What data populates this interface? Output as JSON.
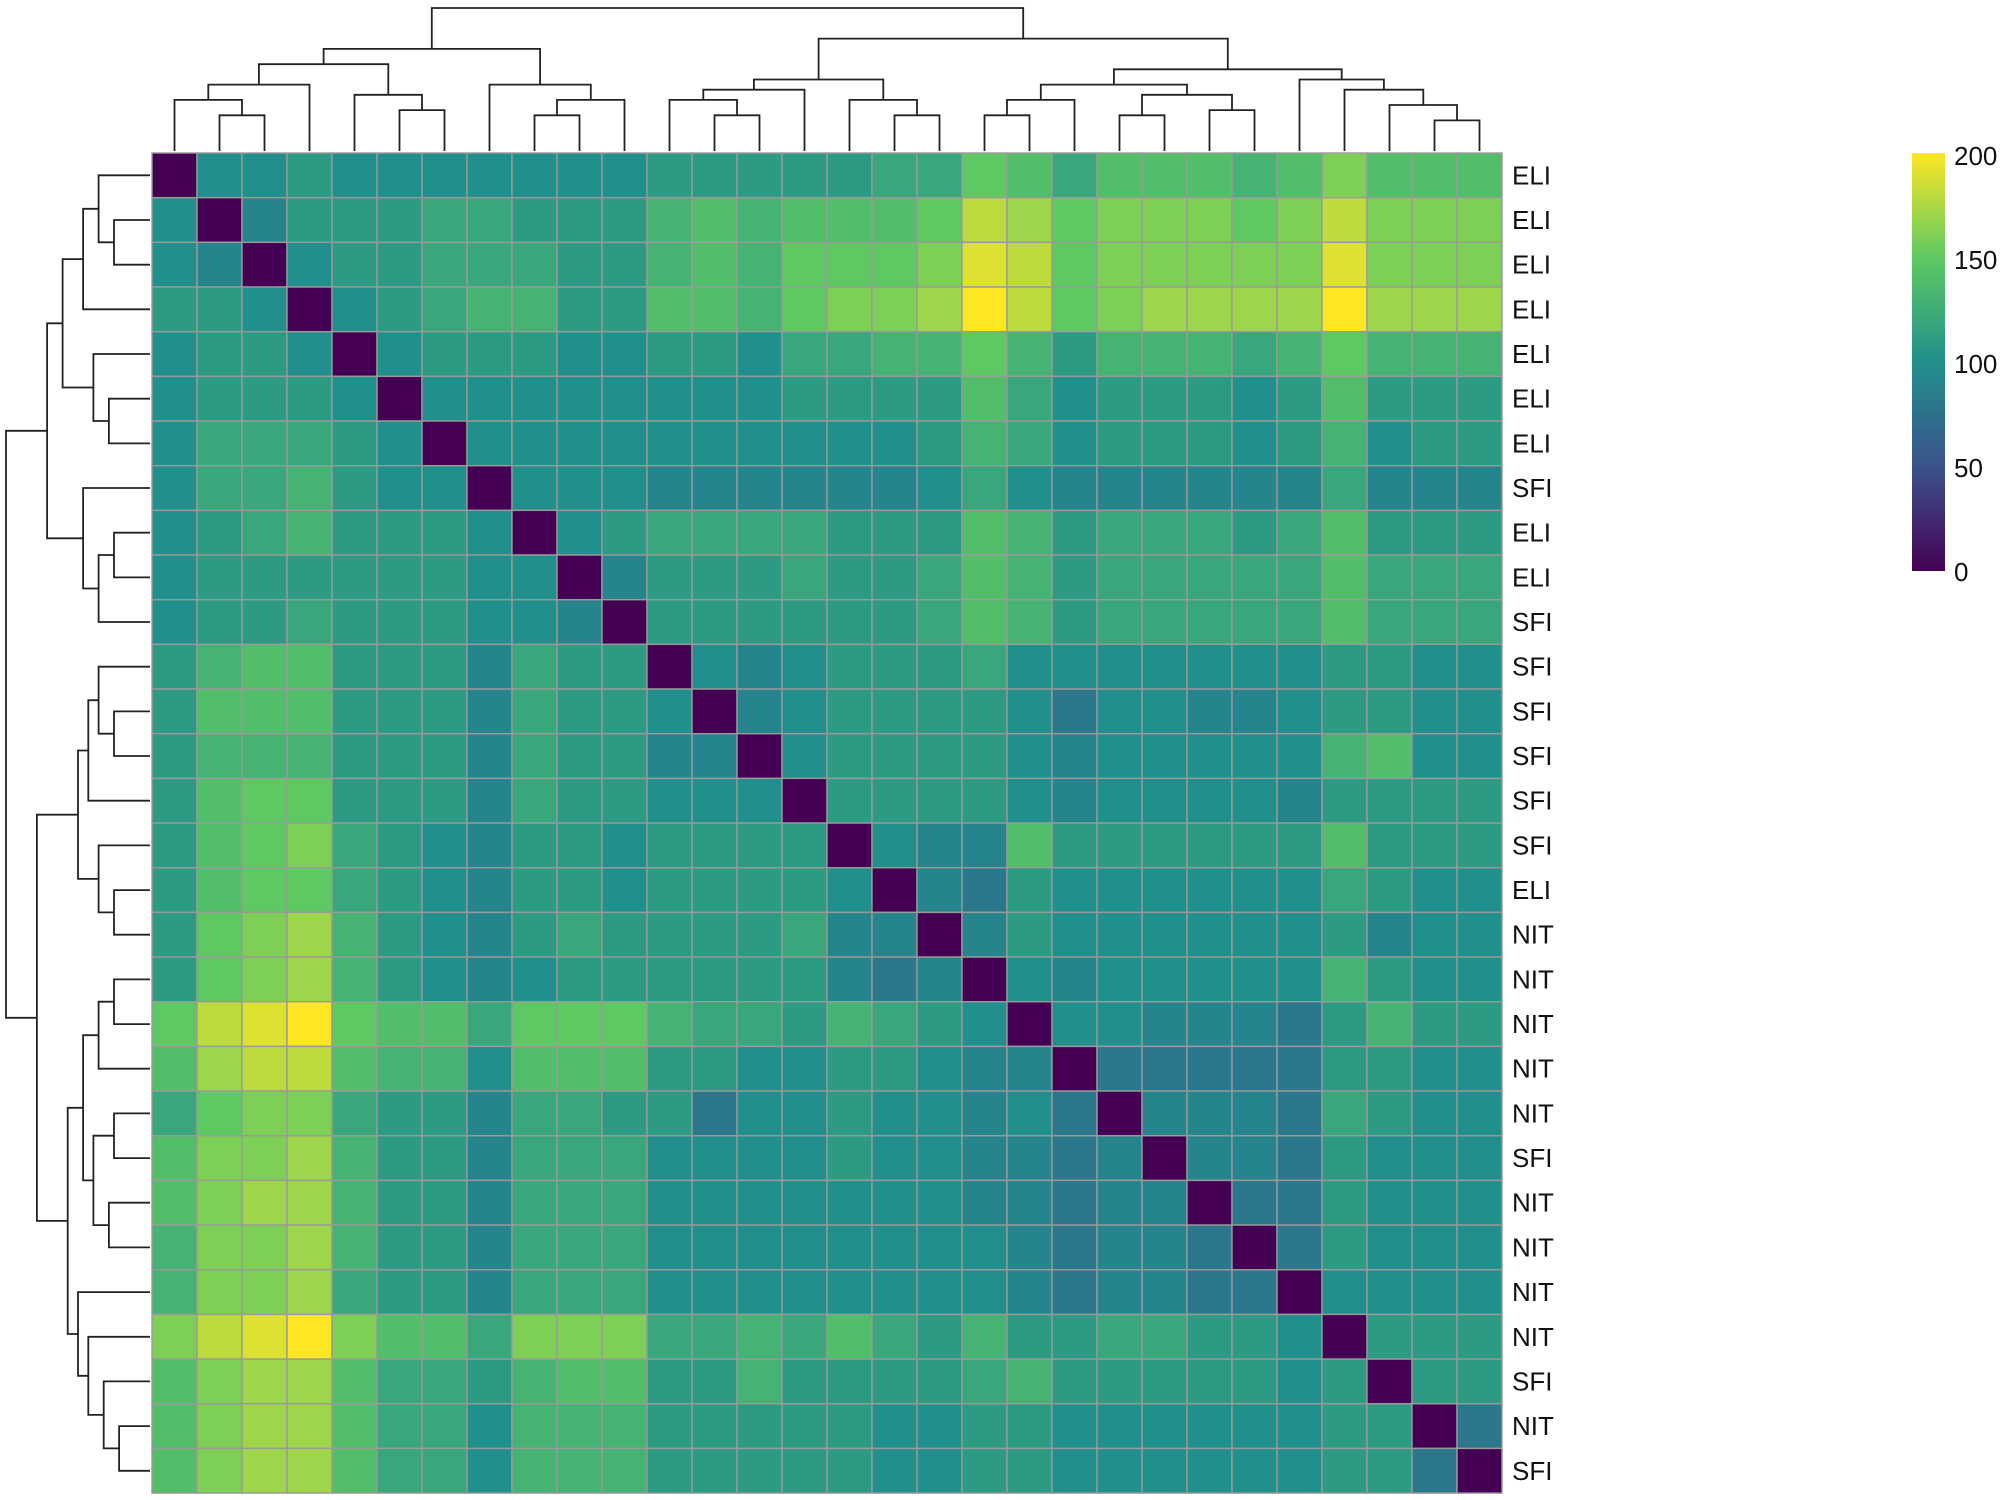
{
  "chart_data": {
    "type": "heatmap",
    "title": "",
    "xlabel": "",
    "ylabel": "",
    "row_labels": [
      "ELI",
      "ELI",
      "ELI",
      "ELI",
      "ELI",
      "ELI",
      "ELI",
      "SFI",
      "ELI",
      "ELI",
      "SFI",
      "SFI",
      "SFI",
      "SFI",
      "SFI",
      "SFI",
      "ELI",
      "NIT",
      "NIT",
      "NIT",
      "NIT",
      "NIT",
      "SFI",
      "NIT",
      "NIT",
      "NIT",
      "NIT",
      "SFI",
      "NIT",
      "SFI"
    ],
    "column_labels_shown": false,
    "colorbar": {
      "range": [
        0,
        200
      ],
      "ticks": [
        "200",
        "150",
        "100",
        "50",
        "0"
      ],
      "palette": [
        "#440154",
        "#3b528b",
        "#21908c",
        "#5ec962",
        "#fde725"
      ]
    },
    "matrix": [
      [
        0,
        100,
        100,
        110,
        100,
        100,
        100,
        100,
        100,
        100,
        100,
        110,
        110,
        110,
        110,
        110,
        120,
        120,
        150,
        140,
        120,
        140,
        140,
        140,
        130,
        140,
        160,
        140,
        140,
        140
      ],
      [
        100,
        0,
        90,
        110,
        110,
        110,
        120,
        120,
        110,
        110,
        110,
        130,
        140,
        130,
        140,
        140,
        140,
        150,
        180,
        170,
        150,
        160,
        160,
        160,
        150,
        160,
        180,
        160,
        160,
        160
      ],
      [
        100,
        90,
        0,
        100,
        110,
        110,
        120,
        120,
        120,
        110,
        110,
        130,
        140,
        130,
        150,
        150,
        150,
        160,
        190,
        180,
        150,
        160,
        160,
        160,
        160,
        160,
        190,
        160,
        160,
        160
      ],
      [
        110,
        110,
        100,
        0,
        100,
        110,
        120,
        130,
        130,
        110,
        110,
        140,
        140,
        130,
        150,
        160,
        160,
        170,
        200,
        180,
        150,
        160,
        170,
        170,
        170,
        170,
        200,
        170,
        170,
        170
      ],
      [
        100,
        110,
        110,
        100,
        0,
        100,
        110,
        110,
        110,
        100,
        100,
        110,
        110,
        100,
        120,
        120,
        130,
        130,
        150,
        130,
        110,
        130,
        130,
        130,
        120,
        130,
        150,
        130,
        130,
        130
      ],
      [
        100,
        110,
        110,
        110,
        100,
        0,
        100,
        100,
        100,
        100,
        100,
        100,
        100,
        100,
        110,
        110,
        110,
        110,
        140,
        120,
        100,
        110,
        110,
        110,
        100,
        110,
        140,
        110,
        110,
        110
      ],
      [
        100,
        120,
        120,
        120,
        110,
        100,
        0,
        100,
        100,
        100,
        100,
        100,
        100,
        100,
        100,
        100,
        100,
        110,
        130,
        120,
        100,
        110,
        110,
        110,
        100,
        110,
        130,
        100,
        110,
        110
      ],
      [
        100,
        120,
        120,
        130,
        110,
        100,
        100,
        0,
        100,
        100,
        100,
        90,
        90,
        90,
        90,
        90,
        90,
        100,
        120,
        100,
        90,
        90,
        90,
        90,
        90,
        90,
        120,
        90,
        90,
        90
      ],
      [
        100,
        110,
        120,
        130,
        110,
        110,
        110,
        100,
        0,
        100,
        110,
        120,
        120,
        120,
        120,
        110,
        110,
        110,
        140,
        130,
        110,
        120,
        120,
        120,
        110,
        120,
        140,
        110,
        110,
        110
      ],
      [
        100,
        110,
        110,
        110,
        110,
        110,
        110,
        100,
        100,
        0,
        90,
        110,
        110,
        110,
        120,
        110,
        110,
        120,
        140,
        130,
        110,
        120,
        120,
        120,
        120,
        120,
        140,
        120,
        120,
        120
      ],
      [
        100,
        110,
        110,
        120,
        110,
        110,
        110,
        100,
        100,
        90,
        0,
        110,
        110,
        110,
        110,
        110,
        110,
        120,
        140,
        130,
        110,
        120,
        120,
        120,
        120,
        120,
        140,
        120,
        120,
        120
      ],
      [
        110,
        130,
        140,
        140,
        110,
        110,
        110,
        90,
        120,
        110,
        110,
        0,
        100,
        90,
        100,
        110,
        110,
        110,
        120,
        100,
        100,
        100,
        100,
        100,
        100,
        100,
        110,
        110,
        100,
        100
      ],
      [
        110,
        140,
        140,
        140,
        110,
        110,
        110,
        90,
        120,
        110,
        110,
        100,
        0,
        90,
        100,
        110,
        110,
        110,
        110,
        100,
        80,
        100,
        100,
        90,
        90,
        100,
        110,
        110,
        100,
        100
      ],
      [
        110,
        130,
        130,
        130,
        110,
        110,
        110,
        90,
        120,
        110,
        110,
        90,
        90,
        0,
        100,
        110,
        110,
        110,
        110,
        100,
        90,
        100,
        100,
        100,
        100,
        100,
        130,
        140,
        100,
        100
      ],
      [
        110,
        140,
        150,
        150,
        110,
        110,
        110,
        90,
        120,
        110,
        110,
        100,
        100,
        100,
        0,
        110,
        110,
        110,
        110,
        100,
        90,
        100,
        100,
        100,
        100,
        90,
        110,
        110,
        110,
        110
      ],
      [
        110,
        140,
        150,
        160,
        120,
        110,
        100,
        90,
        110,
        110,
        100,
        110,
        110,
        110,
        110,
        0,
        100,
        90,
        90,
        140,
        110,
        110,
        110,
        110,
        110,
        110,
        140,
        110,
        110,
        110
      ],
      [
        110,
        140,
        150,
        150,
        120,
        110,
        100,
        90,
        110,
        110,
        100,
        110,
        110,
        110,
        110,
        100,
        0,
        90,
        80,
        110,
        100,
        100,
        100,
        100,
        100,
        100,
        120,
        110,
        100,
        100
      ],
      [
        110,
        150,
        160,
        170,
        130,
        110,
        100,
        90,
        110,
        120,
        110,
        110,
        110,
        110,
        120,
        90,
        90,
        0,
        90,
        110,
        100,
        100,
        100,
        100,
        100,
        100,
        110,
        90,
        100,
        100
      ],
      [
        110,
        150,
        160,
        170,
        130,
        110,
        100,
        90,
        100,
        110,
        110,
        110,
        110,
        110,
        110,
        90,
        80,
        90,
        0,
        100,
        90,
        100,
        100,
        100,
        100,
        100,
        130,
        110,
        100,
        100
      ],
      [
        150,
        180,
        190,
        200,
        150,
        140,
        140,
        120,
        150,
        150,
        150,
        130,
        120,
        120,
        110,
        130,
        120,
        110,
        100,
        0,
        100,
        100,
        90,
        90,
        90,
        80,
        110,
        130,
        110,
        110
      ],
      [
        140,
        170,
        180,
        180,
        140,
        130,
        130,
        100,
        140,
        140,
        140,
        110,
        110,
        100,
        100,
        110,
        110,
        100,
        90,
        90,
        0,
        80,
        80,
        80,
        80,
        80,
        110,
        110,
        100,
        100
      ],
      [
        120,
        150,
        160,
        160,
        120,
        110,
        110,
        90,
        120,
        120,
        110,
        110,
        80,
        100,
        100,
        110,
        100,
        100,
        90,
        100,
        80,
        0,
        90,
        90,
        90,
        80,
        120,
        110,
        100,
        100
      ],
      [
        140,
        160,
        160,
        170,
        130,
        110,
        110,
        90,
        120,
        120,
        120,
        100,
        100,
        100,
        100,
        110,
        100,
        100,
        90,
        90,
        80,
        90,
        0,
        90,
        90,
        80,
        110,
        100,
        100,
        100
      ],
      [
        140,
        160,
        170,
        170,
        130,
        110,
        110,
        90,
        120,
        120,
        120,
        100,
        100,
        100,
        100,
        100,
        100,
        100,
        90,
        90,
        80,
        90,
        90,
        0,
        80,
        80,
        110,
        100,
        100,
        100
      ],
      [
        130,
        160,
        160,
        170,
        130,
        110,
        110,
        90,
        120,
        120,
        120,
        100,
        100,
        100,
        100,
        100,
        100,
        100,
        100,
        90,
        80,
        90,
        90,
        80,
        0,
        80,
        110,
        100,
        100,
        100
      ],
      [
        130,
        160,
        160,
        170,
        120,
        110,
        110,
        90,
        120,
        120,
        120,
        100,
        100,
        100,
        100,
        100,
        100,
        100,
        100,
        90,
        80,
        90,
        90,
        80,
        80,
        0,
        100,
        100,
        100,
        100
      ],
      [
        160,
        180,
        190,
        200,
        160,
        140,
        140,
        120,
        160,
        160,
        160,
        120,
        120,
        130,
        120,
        140,
        120,
        110,
        130,
        110,
        110,
        120,
        120,
        110,
        110,
        100,
        0,
        110,
        110,
        110
      ],
      [
        140,
        160,
        170,
        170,
        140,
        120,
        120,
        110,
        130,
        140,
        140,
        110,
        110,
        130,
        110,
        110,
        110,
        110,
        120,
        130,
        110,
        110,
        110,
        110,
        110,
        100,
        110,
        0,
        110,
        110
      ],
      [
        140,
        160,
        170,
        170,
        140,
        120,
        120,
        100,
        130,
        130,
        130,
        110,
        110,
        110,
        110,
        110,
        100,
        100,
        110,
        110,
        100,
        100,
        100,
        100,
        100,
        100,
        110,
        110,
        0,
        80
      ],
      [
        140,
        160,
        170,
        170,
        140,
        120,
        120,
        100,
        130,
        130,
        130,
        110,
        110,
        110,
        110,
        110,
        100,
        100,
        110,
        110,
        100,
        100,
        100,
        100,
        100,
        100,
        110,
        110,
        80,
        0
      ]
    ]
  }
}
